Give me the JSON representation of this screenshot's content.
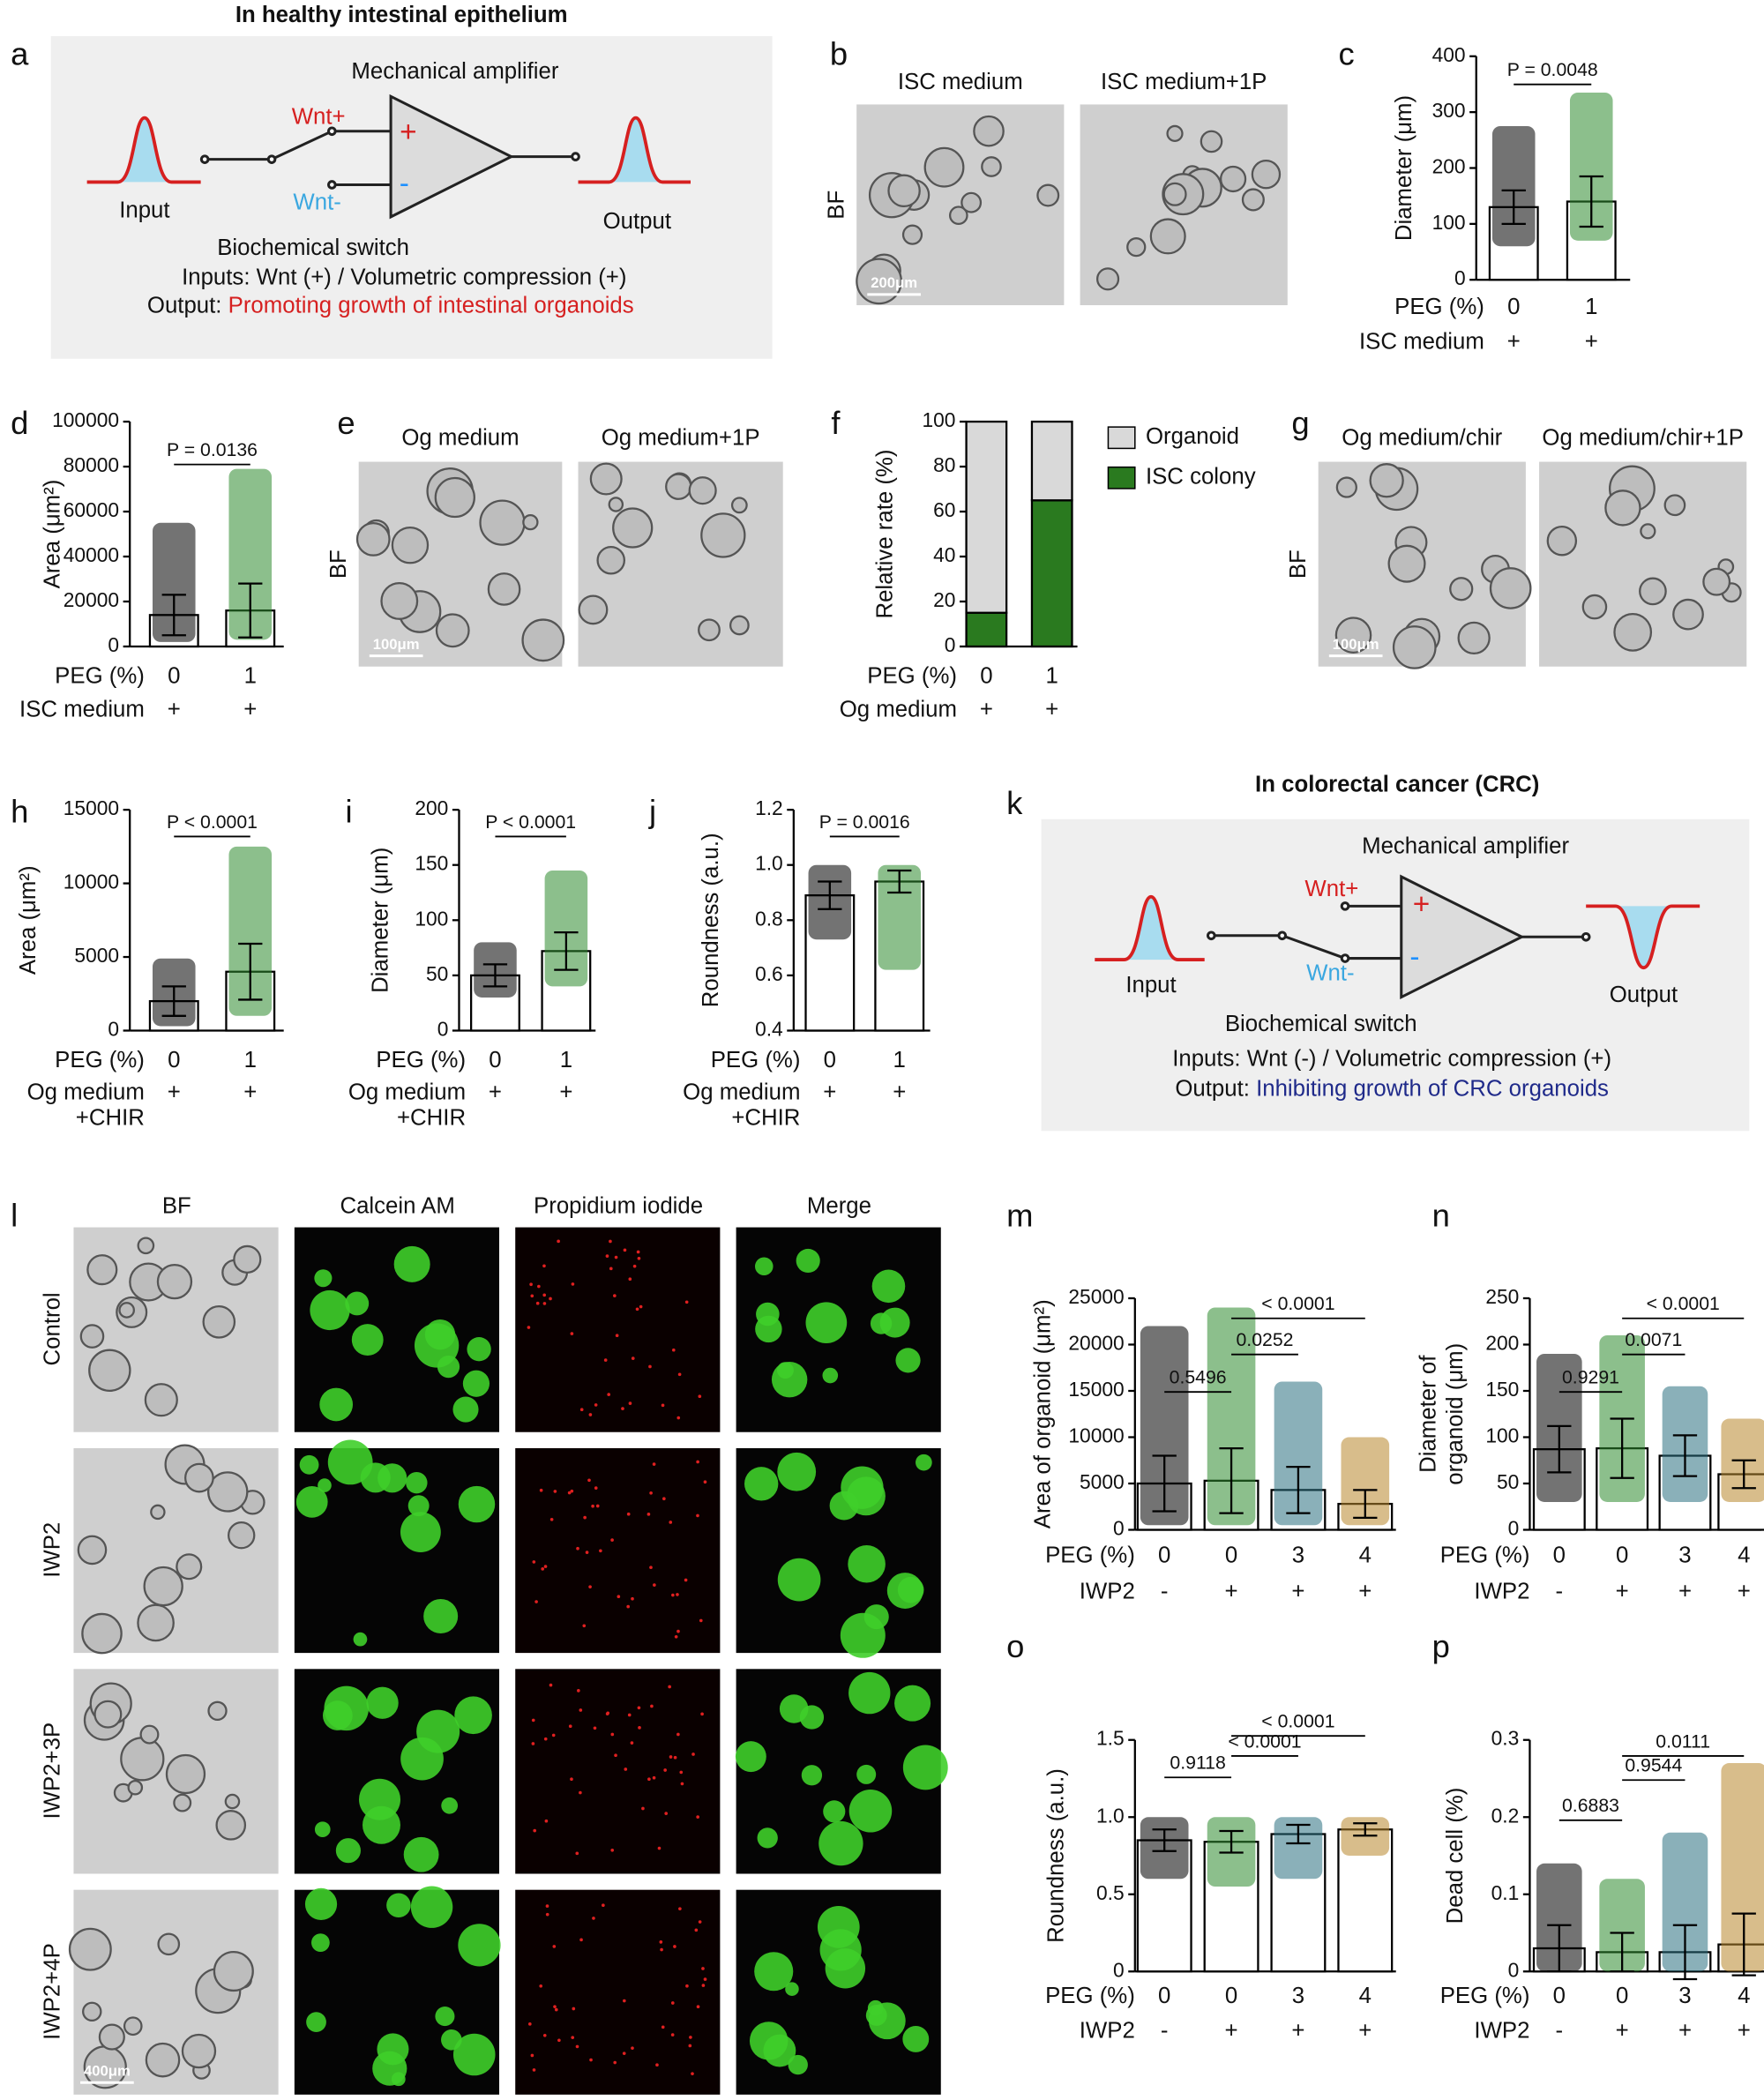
{
  "diagrams": {
    "a": {
      "panel_label": "a",
      "title": "In  healthy intestinal epithelium",
      "amplifier": "Mechanical amplifier",
      "wnt_plus": "Wnt+",
      "plus": "+",
      "minus": "-",
      "wnt_minus": "Wnt-",
      "input": "Input",
      "output": "Output",
      "switch": "Biochemical switch",
      "inputs_line": "Inputs: Wnt (+) / Volumetric compression (+)",
      "output_label": "Output:",
      "output_text": "Promoting growth of intestinal organoids"
    },
    "k": {
      "panel_label": "k",
      "title": "In colorectal cancer (CRC)",
      "amplifier": "Mechanical amplifier",
      "wnt_plus": "Wnt+",
      "plus": "+",
      "minus": "-",
      "wnt_minus": "Wnt-",
      "input": "Input",
      "output": "Output",
      "switch": "Biochemical switch",
      "inputs_line": "Inputs: Wnt (-) / Volumetric compression (+)",
      "output_label": "Output:",
      "output_text": "Inhibiting growth of CRC organoids"
    }
  },
  "images": {
    "b": {
      "panel_label": "b",
      "titles": [
        "ISC medium",
        "ISC medium+1P"
      ],
      "side_label": "BF",
      "scale_bar": "200μm"
    },
    "e": {
      "panel_label": "e",
      "titles": [
        "Og medium",
        "Og medium+1P"
      ],
      "side_label": "BF",
      "scale_bar": "100μm"
    },
    "g": {
      "panel_label": "g",
      "titles": [
        "Og medium/chir",
        "Og medium/chir+1P"
      ],
      "side_label": "BF",
      "scale_bar": "100μm"
    },
    "l": {
      "panel_label": "l",
      "columns": [
        "BF",
        "Calcein AM",
        "Propidium iodide",
        "Merge"
      ],
      "rows": [
        "Control",
        "IWP2",
        "IWP2+3P",
        "IWP2+4P"
      ],
      "scale_bar": "400μm"
    }
  },
  "chart_data": [
    {
      "type": "bar",
      "panel_label": "c",
      "y_label_lines": [
        "Diameter (μm)"
      ],
      "x_label": "PEG (%)",
      "categories": [
        "0",
        "1"
      ],
      "second_row": {
        "label_lines": [
          "ISC medium"
        ],
        "values": [
          "+",
          "+"
        ]
      },
      "values": [
        130,
        140
      ],
      "sd": [
        30,
        45
      ],
      "range_min": [
        60,
        70
      ],
      "range_max": [
        275,
        335
      ],
      "colors": [
        "#000000",
        "#2e8b2e"
      ],
      "ylim": [
        0,
        400
      ],
      "yticks": [
        0,
        100,
        200,
        300,
        400
      ],
      "comparisons": [
        "P = 0.0048"
      ]
    },
    {
      "type": "bar",
      "panel_label": "d",
      "y_label_lines": [
        "Area (μm²)"
      ],
      "x_label": "PEG (%)",
      "categories": [
        "0",
        "1"
      ],
      "second_row": {
        "label_lines": [
          "ISC medium"
        ],
        "values": [
          "+",
          "+"
        ]
      },
      "values": [
        14000,
        16000
      ],
      "sd": [
        9000,
        12000
      ],
      "range_min": [
        2000,
        3000
      ],
      "range_max": [
        55000,
        79000
      ],
      "colors": [
        "#000000",
        "#2e8b2e"
      ],
      "ylim": [
        0,
        100000
      ],
      "yticks": [
        0,
        20000,
        40000,
        60000,
        80000,
        100000
      ],
      "comparisons": [
        "P = 0.0136"
      ]
    },
    {
      "type": "stacked_bar",
      "panel_label": "f",
      "y_label_lines": [
        "Relative rate (%)"
      ],
      "x_label": "PEG (%)",
      "categories": [
        "0",
        "1"
      ],
      "second_row": {
        "label_lines": [
          "Og medium"
        ],
        "values": [
          "+",
          "+"
        ]
      },
      "series": [
        {
          "name": "ISC colony",
          "color": "#2a7a1f",
          "values": [
            15,
            65
          ]
        },
        {
          "name": "Organoid",
          "color": "#d9d9d9",
          "values": [
            85,
            35
          ]
        }
      ],
      "ylim": [
        0,
        100
      ],
      "yticks": [
        0,
        20,
        40,
        60,
        80,
        100
      ],
      "comparisons": []
    },
    {
      "type": "bar",
      "panel_label": "h",
      "y_label_lines": [
        "Area  (μm²)"
      ],
      "x_label": "PEG (%)",
      "categories": [
        "0",
        "1"
      ],
      "second_row": {
        "label_lines": [
          "Og medium",
          "+CHIR"
        ],
        "values": [
          "+",
          "+"
        ]
      },
      "values": [
        2000,
        4000
      ],
      "sd": [
        1000,
        1900
      ],
      "range_min": [
        300,
        1000
      ],
      "range_max": [
        4900,
        12500
      ],
      "colors": [
        "#000000",
        "#2e8b2e"
      ],
      "ylim": [
        0,
        15000
      ],
      "yticks": [
        0,
        5000,
        10000,
        15000
      ],
      "comparisons": [
        "P < 0.0001"
      ]
    },
    {
      "type": "bar",
      "panel_label": "i",
      "y_label_lines": [
        "Diameter (μm)"
      ],
      "x_label": "PEG (%)",
      "categories": [
        "0",
        "1"
      ],
      "second_row": {
        "label_lines": [
          "Og medium",
          "+CHIR"
        ],
        "values": [
          "+",
          "+"
        ]
      },
      "values": [
        50,
        72
      ],
      "sd": [
        10,
        17
      ],
      "range_min": [
        30,
        40
      ],
      "range_max": [
        80,
        145
      ],
      "colors": [
        "#000000",
        "#2e8b2e"
      ],
      "ylim": [
        0,
        200
      ],
      "yticks": [
        0,
        50,
        100,
        150,
        200
      ],
      "comparisons": [
        "P < 0.0001"
      ]
    },
    {
      "type": "bar",
      "panel_label": "j",
      "y_label_lines": [
        "Roundness (a.u.)"
      ],
      "x_label": "PEG (%)",
      "categories": [
        "0",
        "1"
      ],
      "second_row": {
        "label_lines": [
          "Og medium",
          "+CHIR"
        ],
        "values": [
          "+",
          "+"
        ]
      },
      "values": [
        0.89,
        0.94
      ],
      "sd": [
        0.05,
        0.04
      ],
      "range_min": [
        0.73,
        0.62
      ],
      "range_max": [
        1,
        1
      ],
      "colors": [
        "#000000",
        "#2e8b2e"
      ],
      "ylim": [
        0.4,
        1.2
      ],
      "yticks": [
        0.4,
        0.6,
        0.8,
        {
          "value": 1,
          "label": "1.0"
        },
        1.2
      ],
      "comparisons": [
        "P = 0.0016"
      ]
    },
    {
      "type": "bar",
      "panel_label": "m",
      "y_label_lines": [
        "Area of organoid (μm²)"
      ],
      "x_label": "PEG (%)",
      "categories": [
        "0",
        "0",
        "3",
        "4"
      ],
      "second_row": {
        "label_lines": [
          "IWP2"
        ],
        "values": [
          "-",
          "+",
          "+",
          "+"
        ]
      },
      "values": [
        5000,
        5300,
        4300,
        2800
      ],
      "sd": [
        3000,
        3500,
        2500,
        1500
      ],
      "range_min": [
        500,
        500,
        500,
        500
      ],
      "range_max": [
        22000,
        24000,
        16000,
        10000
      ],
      "colors": [
        "#000000",
        "#2e8b2e",
        "#2a6f7f",
        "#b8862b"
      ],
      "ylim": [
        0,
        25000
      ],
      "yticks": [
        0,
        5000,
        10000,
        15000,
        20000,
        25000
      ],
      "comparisons": [
        "0.5496",
        "0.0252",
        "< 0.0001"
      ]
    },
    {
      "type": "bar",
      "panel_label": "n",
      "y_label_lines": [
        "Diameter of",
        "organoid (μm)"
      ],
      "x_label": "PEG (%)",
      "categories": [
        "0",
        "0",
        "3",
        "4"
      ],
      "second_row": {
        "label_lines": [
          "IWP2"
        ],
        "values": [
          "-",
          "+",
          "+",
          "+"
        ]
      },
      "values": [
        87,
        88,
        80,
        60
      ],
      "sd": [
        25,
        32,
        22,
        15
      ],
      "range_min": [
        30,
        30,
        30,
        30
      ],
      "range_max": [
        190,
        210,
        155,
        120
      ],
      "colors": [
        "#000000",
        "#2e8b2e",
        "#2a6f7f",
        "#b8862b"
      ],
      "ylim": [
        0,
        250
      ],
      "yticks": [
        0,
        50,
        100,
        150,
        200,
        250
      ],
      "comparisons": [
        "0.9291",
        "0.0071",
        "< 0.0001"
      ]
    },
    {
      "type": "bar",
      "panel_label": "o",
      "y_label_lines": [
        "Roundness (a.u.)"
      ],
      "x_label": "PEG (%)",
      "categories": [
        "0",
        "0",
        "3",
        "4"
      ],
      "second_row": {
        "label_lines": [
          "IWP2"
        ],
        "values": [
          "-",
          "+",
          "+",
          "+"
        ]
      },
      "values": [
        0.85,
        0.84,
        0.89,
        0.92
      ],
      "sd": [
        0.07,
        0.07,
        0.06,
        0.04
      ],
      "range_min": [
        0.6,
        0.55,
        0.6,
        0.75
      ],
      "range_max": [
        1,
        1,
        1,
        1
      ],
      "colors": [
        "#000000",
        "#2e8b2e",
        "#2a6f7f",
        "#b8862b"
      ],
      "ylim": [
        0,
        1.5
      ],
      "yticks": [
        0,
        0.5,
        {
          "value": 1,
          "label": "1.0"
        },
        1.5
      ],
      "comparisons": [
        "0.9118",
        "< 0.0001",
        "< 0.0001"
      ]
    },
    {
      "type": "bar",
      "panel_label": "p",
      "y_label_lines": [
        "Dead cell (%)"
      ],
      "x_label": "PEG (%)",
      "categories": [
        "0",
        "0",
        "3",
        "4"
      ],
      "second_row": {
        "label_lines": [
          "IWP2"
        ],
        "values": [
          "-",
          "+",
          "+",
          "+"
        ]
      },
      "values": [
        0.03,
        0.025,
        0.025,
        0.035
      ],
      "sd": [
        0.03,
        0.025,
        0.035,
        0.04
      ],
      "range_min": [
        0,
        0,
        0,
        0
      ],
      "range_max": [
        0.14,
        0.12,
        0.18,
        0.27
      ],
      "colors": [
        "#000000",
        "#2e8b2e",
        "#2a6f7f",
        "#b8862b"
      ],
      "ylim": [
        0,
        0.3
      ],
      "yticks": [
        0,
        0.1,
        0.2,
        0.3
      ],
      "comparisons": [
        "0.6883",
        "0.9544",
        "0.0111"
      ]
    }
  ]
}
